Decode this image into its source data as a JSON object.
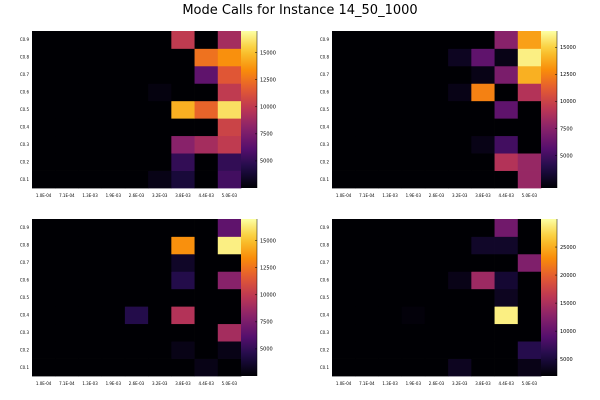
{
  "figure": {
    "title": "Mode Calls for Instance 14_50_1000"
  },
  "chart_data": [
    {
      "type": "heatmap",
      "x_tick_labels": [
        "1.0E-04",
        "7.1E-04",
        "1.3E-03",
        "1.9E-03",
        "2.6E-03",
        "3.2E-03",
        "3.8E-03",
        "4.4E-03",
        "5.0E-03"
      ],
      "y_tick_labels": [
        "C0.1",
        "C0.2",
        "C0.3",
        "C0.4",
        "C0.5",
        "C0.6",
        "C0.7",
        "C0.8",
        "C0.9"
      ],
      "colorbar": {
        "min": 2500,
        "max": 17000,
        "ticks": [
          5000,
          7500,
          10000,
          12500,
          15000
        ]
      },
      "z": [
        [
          2500,
          2500,
          2500,
          2500,
          2500,
          3000,
          4000,
          2500,
          5500
        ],
        [
          2500,
          2500,
          2500,
          2500,
          2500,
          2500,
          5000,
          2500,
          5000
        ],
        [
          2500,
          2500,
          2500,
          2500,
          2500,
          2500,
          8000,
          9000,
          10000
        ],
        [
          2500,
          2500,
          2500,
          2500,
          2500,
          2500,
          2500,
          2500,
          10500
        ],
        [
          2500,
          2500,
          2500,
          2500,
          2500,
          2500,
          14500,
          12000,
          16000
        ],
        [
          2500,
          2500,
          2500,
          2500,
          2500,
          2800,
          2500,
          2500,
          10000
        ],
        [
          2500,
          2500,
          2500,
          2500,
          2500,
          2500,
          2500,
          6500,
          11500
        ],
        [
          2500,
          2500,
          2500,
          2500,
          2500,
          2500,
          2500,
          12500,
          13500
        ],
        [
          2500,
          2500,
          2500,
          2500,
          2500,
          2500,
          10000,
          2500,
          9000
        ]
      ]
    },
    {
      "type": "heatmap",
      "x_tick_labels": [
        "1.0E-04",
        "7.1E-04",
        "1.3E-03",
        "1.9E-03",
        "2.6E-03",
        "3.2E-03",
        "3.8E-03",
        "4.4E-03",
        "5.0E-03"
      ],
      "y_tick_labels": [
        "C0.1",
        "C0.2",
        "C0.3",
        "C0.4",
        "C0.5",
        "C0.6",
        "C0.7",
        "C0.8",
        "C0.9"
      ],
      "colorbar": {
        "min": 2000,
        "max": 16500,
        "ticks": [
          5000,
          7500,
          10000,
          12500,
          15000
        ]
      },
      "z": [
        [
          2000,
          2000,
          2000,
          2000,
          2000,
          2000,
          2000,
          2000,
          8000
        ],
        [
          2000,
          2000,
          2000,
          2000,
          2000,
          2000,
          2000,
          9000,
          8000
        ],
        [
          2000,
          2000,
          2000,
          2000,
          2000,
          2000,
          2500,
          5000,
          2000
        ],
        [
          2000,
          2000,
          2000,
          2000,
          2000,
          2000,
          2000,
          2000,
          2000
        ],
        [
          2000,
          2000,
          2000,
          2000,
          2000,
          2000,
          2000,
          6000,
          2000
        ],
        [
          2000,
          2000,
          2000,
          2000,
          2000,
          2500,
          12500,
          2000,
          9000
        ],
        [
          2000,
          2000,
          2000,
          2000,
          2000,
          2000,
          2500,
          7000,
          14000
        ],
        [
          2000,
          2000,
          2000,
          2000,
          2000,
          2800,
          6000,
          2500,
          16000
        ],
        [
          2000,
          2000,
          2000,
          2000,
          2000,
          2000,
          2000,
          7500,
          13500
        ]
      ]
    },
    {
      "type": "heatmap",
      "x_tick_labels": [
        "1.0E-04",
        "7.1E-04",
        "1.3E-03",
        "1.9E-03",
        "2.6E-03",
        "3.2E-03",
        "3.8E-03",
        "4.4E-03",
        "5.0E-03"
      ],
      "y_tick_labels": [
        "C0.1",
        "C0.2",
        "C0.3",
        "C0.4",
        "C0.5",
        "C0.6",
        "C0.7",
        "C0.8",
        "C0.9"
      ],
      "colorbar": {
        "min": 2500,
        "max": 17000,
        "ticks": [
          5000,
          7500,
          10000,
          12500,
          15000
        ]
      },
      "z": [
        [
          2500,
          2500,
          2500,
          2500,
          2500,
          2500,
          2500,
          3000,
          2500
        ],
        [
          2500,
          2500,
          2500,
          2500,
          2500,
          2500,
          3000,
          2500,
          3000
        ],
        [
          2500,
          2500,
          2500,
          2500,
          2500,
          2500,
          2500,
          2500,
          9000
        ],
        [
          2500,
          2500,
          2500,
          2500,
          4500,
          2500,
          9500,
          2500,
          2500
        ],
        [
          2500,
          2500,
          2500,
          2500,
          2500,
          2500,
          2500,
          2500,
          2500
        ],
        [
          2500,
          2500,
          2500,
          2500,
          2500,
          2500,
          4500,
          2500,
          8000
        ],
        [
          2500,
          2500,
          2500,
          2500,
          2500,
          2500,
          3500,
          2500,
          2500
        ],
        [
          2500,
          2500,
          2500,
          2500,
          2500,
          2500,
          13500,
          2500,
          16500
        ],
        [
          2500,
          2500,
          2500,
          2500,
          2500,
          2500,
          2500,
          2500,
          6500
        ]
      ]
    },
    {
      "type": "heatmap",
      "x_tick_labels": [
        "1.0E-04",
        "7.1E-04",
        "1.3E-03",
        "1.9E-03",
        "2.6E-03",
        "3.2E-03",
        "3.8E-03",
        "4.4E-03",
        "5.0E-03"
      ],
      "y_tick_labels": [
        "C0.1",
        "C0.2",
        "C0.3",
        "C0.4",
        "C0.5",
        "C0.6",
        "C0.7",
        "C0.8",
        "C0.9"
      ],
      "colorbar": {
        "min": 2000,
        "max": 30000,
        "ticks": [
          5000,
          10000,
          15000,
          20000,
          25000
        ]
      },
      "z": [
        [
          2000,
          2000,
          2000,
          2000,
          2000,
          3500,
          2000,
          2000,
          3000
        ],
        [
          2000,
          2000,
          2000,
          2000,
          2000,
          2000,
          2000,
          2000,
          6000
        ],
        [
          2000,
          2000,
          2000,
          2000,
          2000,
          2000,
          2000,
          2000,
          2000
        ],
        [
          2000,
          2000,
          2000,
          2300,
          2000,
          2000,
          2000,
          29000,
          2000
        ],
        [
          2000,
          2000,
          2000,
          2000,
          2000,
          2000,
          2000,
          3500,
          2000
        ],
        [
          2000,
          2000,
          2000,
          2000,
          2000,
          3000,
          14000,
          4500,
          2000
        ],
        [
          2000,
          2000,
          2000,
          2000,
          2000,
          2000,
          2000,
          2000,
          12000
        ],
        [
          2000,
          2000,
          2000,
          2000,
          2000,
          2000,
          4000,
          4000,
          2000
        ],
        [
          2000,
          2000,
          2000,
          2000,
          2000,
          2000,
          2000,
          11000,
          2000
        ]
      ]
    }
  ]
}
